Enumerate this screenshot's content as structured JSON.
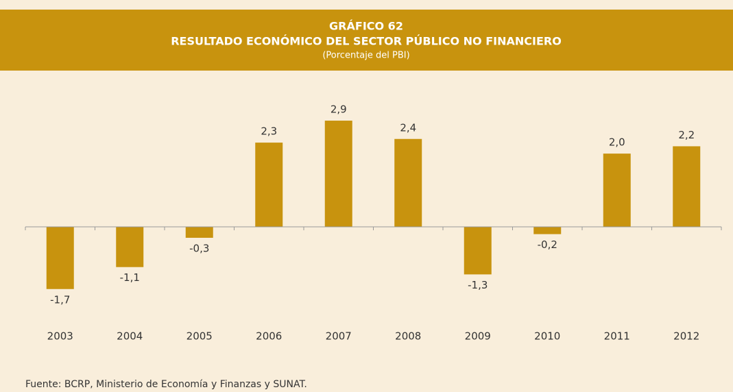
{
  "chart_data": {
    "type": "bar",
    "title": "GRÁFICO 62",
    "subtitle": "RESULTADO ECONÓMICO DEL SECTOR PÚBLICO NO FINANCIERO",
    "unit_label": "(Porcentaje del PBI)",
    "categories": [
      "2003",
      "2004",
      "2005",
      "2006",
      "2007",
      "2008",
      "2009",
      "2010",
      "2011",
      "2012"
    ],
    "values": [
      -1.7,
      -1.1,
      -0.3,
      2.3,
      2.9,
      2.4,
      -1.3,
      -0.2,
      2.0,
      2.2
    ],
    "value_labels": [
      "-1,7",
      "-1,1",
      "-0,3",
      "2,3",
      "2,9",
      "2,4",
      "-1,3",
      "-0,2",
      "2,0",
      "2,2"
    ],
    "color": "#c8930e",
    "ylim": [
      -2.5,
      3.5
    ],
    "source": "Fuente: BCRP, Ministerio de Economía y Finanzas y SUNAT."
  }
}
